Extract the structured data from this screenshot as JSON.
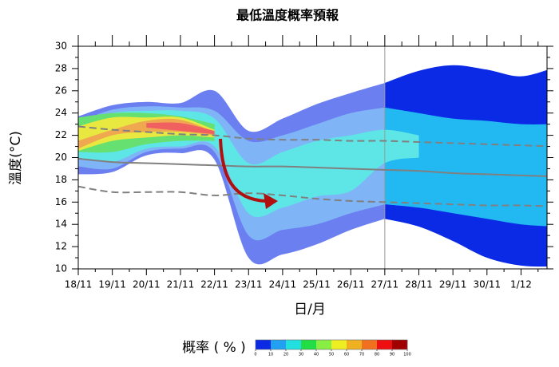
{
  "chart_data": {
    "type": "band",
    "title": "最低溫度概率預報",
    "x_label": "日/月",
    "y_label": "溫度(°C)",
    "categories": [
      "18/11",
      "19/11",
      "20/11",
      "21/11",
      "22/11",
      "23/11",
      "24/11",
      "25/11",
      "26/11",
      "27/11",
      "28/11",
      "29/11",
      "30/11",
      "1/12",
      null
    ],
    "highlighted_indices": [
      3,
      10
    ],
    "highlight_color": "#c00000",
    "ylim": [
      10,
      30
    ],
    "yticks": [
      10,
      12,
      14,
      16,
      18,
      20,
      22,
      24,
      26,
      28,
      30
    ],
    "bands": [
      {
        "color": "#6b7ff0",
        "upper": [
          23.7,
          24.7,
          25.0,
          24.9,
          26.0,
          22.4,
          23.5,
          24.8,
          25.8,
          26.7,
          null,
          null,
          null,
          null,
          null
        ],
        "lower": [
          18.5,
          18.7,
          20.2,
          20.4,
          19.8,
          11.0,
          11.3,
          12.2,
          13.5,
          14.5,
          null,
          null,
          null,
          null,
          null
        ]
      },
      {
        "color": "#0a2ae6",
        "upper": [
          null,
          null,
          null,
          null,
          null,
          null,
          null,
          null,
          null,
          26.7,
          27.8,
          28.3,
          27.9,
          27.3,
          28.1
        ],
        "lower": [
          null,
          null,
          null,
          null,
          null,
          null,
          null,
          null,
          null,
          14.5,
          13.8,
          12.5,
          11.0,
          10.3,
          10.2
        ]
      },
      {
        "color": "#7fb4f6",
        "upper": [
          23.2,
          24.3,
          24.6,
          24.5,
          24.2,
          21.5,
          22.0,
          23.0,
          24.0,
          24.5,
          null,
          null,
          null,
          null,
          null
        ],
        "lower": [
          19.2,
          19.0,
          20.5,
          20.8,
          20.5,
          13.0,
          13.5,
          14.0,
          15.0,
          15.8,
          null,
          null,
          null,
          null,
          null
        ]
      },
      {
        "color": "#22b8f2",
        "upper": [
          null,
          null,
          null,
          null,
          null,
          null,
          null,
          null,
          null,
          24.5,
          24.0,
          23.5,
          23.3,
          23.0,
          23.0
        ],
        "lower": [
          null,
          null,
          null,
          null,
          null,
          null,
          null,
          null,
          null,
          15.8,
          15.5,
          15.0,
          14.5,
          14.0,
          13.8
        ]
      },
      {
        "color": "#5ee6e6",
        "upper": [
          23.0,
          24.0,
          24.2,
          24.2,
          23.5,
          19.5,
          20.5,
          21.5,
          22.0,
          22.5,
          22.0,
          null,
          null,
          null,
          null
        ],
        "lower": [
          20.0,
          19.6,
          20.8,
          21.0,
          21.0,
          15.0,
          15.5,
          16.5,
          17.0,
          19.5,
          20.0,
          null,
          null,
          null,
          null
        ]
      },
      {
        "color": "#66e070",
        "upper": [
          23.6,
          24.0,
          24.0,
          23.7,
          23.0,
          null,
          null,
          null,
          null,
          null,
          null,
          null,
          null,
          null,
          null
        ],
        "lower": [
          20.5,
          20.5,
          21.2,
          21.5,
          21.5,
          null,
          null,
          null,
          null,
          null,
          null,
          null,
          null,
          null,
          null
        ]
      },
      {
        "color": "#e8e840",
        "upper": [
          22.8,
          23.6,
          23.6,
          23.6,
          22.5,
          null,
          null,
          null,
          null,
          null,
          null,
          null,
          null,
          null,
          null
        ],
        "lower": [
          20.6,
          21.5,
          21.8,
          22.0,
          21.8,
          null,
          null,
          null,
          null,
          null,
          null,
          null,
          null,
          null,
          null
        ]
      },
      {
        "color": "#f0a850",
        "upper": [
          21.5,
          22.5,
          23.3,
          23.4,
          22.3,
          null,
          null,
          null,
          null,
          null,
          null,
          null,
          null,
          null,
          null
        ],
        "lower": [
          20.8,
          22.0,
          22.3,
          22.3,
          22.0,
          null,
          null,
          null,
          null,
          null,
          null,
          null,
          null,
          null,
          null
        ]
      },
      {
        "color": "#f06060",
        "upper": [
          null,
          null,
          23.1,
          23.1,
          22.4,
          null,
          null,
          null,
          null,
          null,
          null,
          null,
          null,
          null,
          null
        ],
        "lower": [
          null,
          null,
          22.7,
          22.4,
          22.1,
          null,
          null,
          null,
          null,
          null,
          null,
          null,
          null,
          null,
          null
        ]
      }
    ],
    "lines": [
      {
        "style": "dashed",
        "color": "#808080",
        "values": [
          22.8,
          22.5,
          22.3,
          22.1,
          22.0,
          21.7,
          21.6,
          21.6,
          21.5,
          21.5,
          21.4,
          21.3,
          21.2,
          21.1,
          21.0
        ]
      },
      {
        "style": "solid",
        "color": "#808080",
        "values": [
          19.9,
          19.6,
          19.5,
          19.4,
          19.3,
          19.2,
          19.2,
          19.1,
          19.0,
          18.9,
          18.8,
          18.6,
          18.5,
          18.4,
          18.3
        ]
      },
      {
        "style": "dashed",
        "color": "#808080",
        "values": [
          17.4,
          16.9,
          16.9,
          16.9,
          16.6,
          16.8,
          16.6,
          16.3,
          16.1,
          16.0,
          15.9,
          15.8,
          15.7,
          15.7,
          15.6
        ]
      }
    ],
    "colorbar": {
      "label": "概率 ( % )",
      "ticks": [
        0,
        10,
        20,
        30,
        40,
        50,
        60,
        70,
        80,
        90,
        100
      ],
      "colors": [
        "#0a2ae6",
        "#22a0f2",
        "#22e0e0",
        "#22dd44",
        "#88ee44",
        "#eeee22",
        "#f0b020",
        "#f07020",
        "#ee1010",
        "#a00000"
      ]
    }
  }
}
